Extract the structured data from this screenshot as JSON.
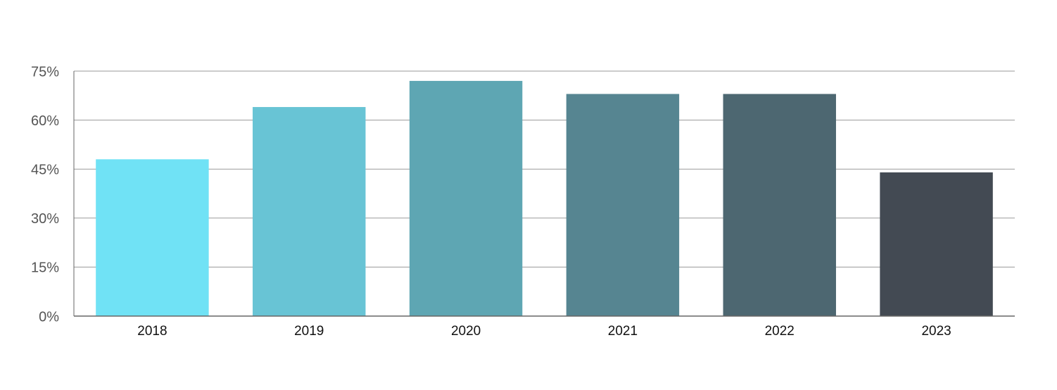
{
  "chart_data": {
    "type": "bar",
    "categories": [
      "2018",
      "2019",
      "2020",
      "2021",
      "2022",
      "2023"
    ],
    "values": [
      48,
      64,
      72,
      68,
      68,
      44
    ],
    "colors": [
      "#70e2f5",
      "#68c4d5",
      "#5ea6b3",
      "#568591",
      "#4d6771",
      "#434a53"
    ],
    "ylim": [
      0,
      75
    ],
    "yticks": [
      {
        "value": 0,
        "label": "0%"
      },
      {
        "value": 15,
        "label": "15%"
      },
      {
        "value": 30,
        "label": "30%"
      },
      {
        "value": 45,
        "label": "45%"
      },
      {
        "value": 60,
        "label": "60%"
      },
      {
        "value": 75,
        "label": "75%"
      }
    ],
    "grid": true
  }
}
